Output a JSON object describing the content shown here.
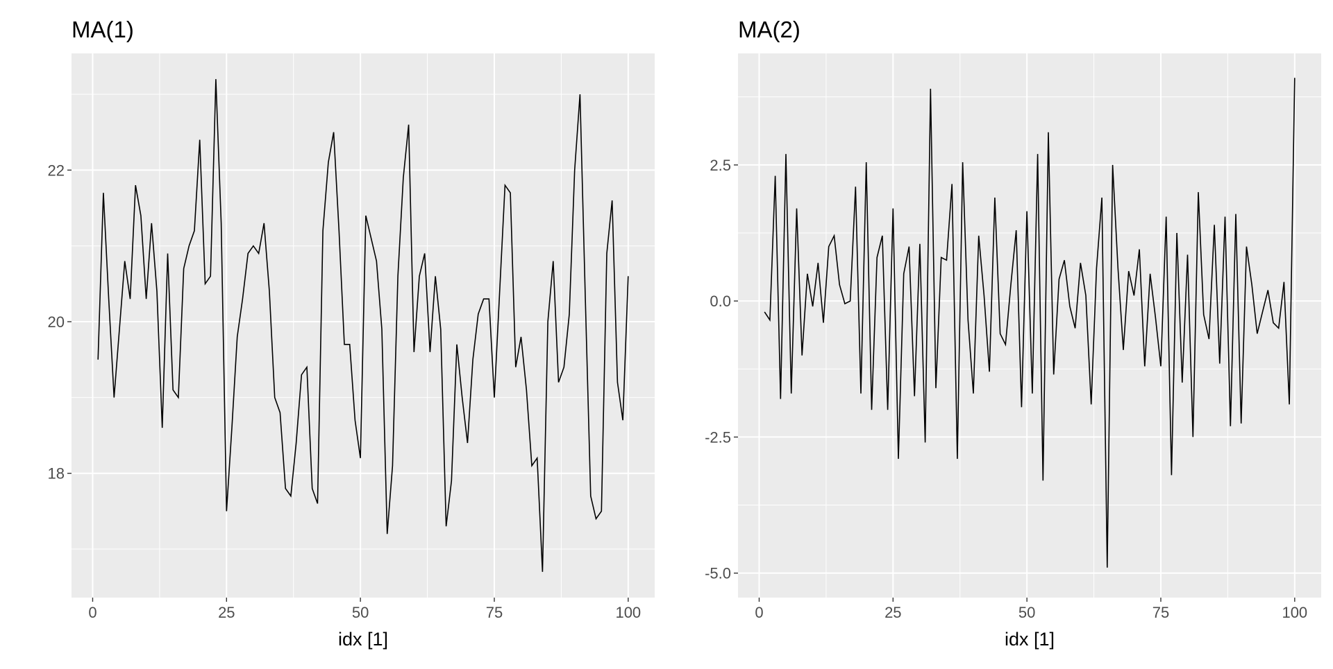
{
  "chart_data": [
    {
      "type": "line",
      "title": "MA(1)",
      "xlabel": "idx [1]",
      "ylabel": "",
      "xlim": [
        -3.95,
        104.95
      ],
      "ylim": [
        16.36,
        23.54
      ],
      "x_ticks": [
        0,
        25,
        50,
        75,
        100
      ],
      "y_ticks": [
        18,
        20,
        22
      ],
      "grid": true,
      "colors": {
        "panel": "#ebebeb",
        "grid": "#ffffff",
        "line": "#000000"
      },
      "x": [
        1,
        2,
        3,
        4,
        5,
        6,
        7,
        8,
        9,
        10,
        11,
        12,
        13,
        14,
        15,
        16,
        17,
        18,
        19,
        20,
        21,
        22,
        23,
        24,
        25,
        26,
        27,
        28,
        29,
        30,
        31,
        32,
        33,
        34,
        35,
        36,
        37,
        38,
        39,
        40,
        41,
        42,
        43,
        44,
        45,
        46,
        47,
        48,
        49,
        50,
        51,
        52,
        53,
        54,
        55,
        56,
        57,
        58,
        59,
        60,
        61,
        62,
        63,
        64,
        65,
        66,
        67,
        68,
        69,
        70,
        71,
        72,
        73,
        74,
        75,
        76,
        77,
        78,
        79,
        80,
        81,
        82,
        83,
        84,
        85,
        86,
        87,
        88,
        89,
        90,
        91,
        92,
        93,
        94,
        95,
        96,
        97,
        98,
        99,
        100
      ],
      "values": [
        19.5,
        21.7,
        20.3,
        19.0,
        19.9,
        20.8,
        20.3,
        21.8,
        21.4,
        20.3,
        21.3,
        20.4,
        18.6,
        20.9,
        19.1,
        19.0,
        20.7,
        21.0,
        21.2,
        22.4,
        20.5,
        20.6,
        23.2,
        21.3,
        17.5,
        18.6,
        19.8,
        20.3,
        20.9,
        21.0,
        20.9,
        21.3,
        20.4,
        19.0,
        18.8,
        17.8,
        17.7,
        18.4,
        19.3,
        19.4,
        17.8,
        17.6,
        21.2,
        22.1,
        22.5,
        21.2,
        19.7,
        19.7,
        18.7,
        18.2,
        21.4,
        21.1,
        20.8,
        19.9,
        17.2,
        18.1,
        20.6,
        21.9,
        22.6,
        19.6,
        20.6,
        20.9,
        19.6,
        20.6,
        19.9,
        17.3,
        17.9,
        19.7,
        19.0,
        18.4,
        19.5,
        20.1,
        20.3,
        20.3,
        19.0,
        20.4,
        21.8,
        21.7,
        19.4,
        19.8,
        19.1,
        18.1,
        18.2,
        16.7,
        20.0,
        20.8,
        19.2,
        19.4,
        20.1,
        22.0,
        23.0,
        20.3,
        17.7,
        17.4,
        17.5,
        20.9,
        21.6,
        19.2,
        18.7,
        20.6
      ]
    },
    {
      "type": "line",
      "title": "MA(2)",
      "xlabel": "idx [1]",
      "ylabel": "",
      "xlim": [
        -3.95,
        104.95
      ],
      "ylim": [
        -5.45,
        4.55
      ],
      "x_ticks": [
        0,
        25,
        50,
        75,
        100
      ],
      "y_ticks": [
        -5.0,
        -2.5,
        0.0,
        2.5
      ],
      "grid": true,
      "colors": {
        "panel": "#ebebeb",
        "grid": "#ffffff",
        "line": "#000000"
      },
      "x": [
        1,
        2,
        3,
        4,
        5,
        6,
        7,
        8,
        9,
        10,
        11,
        12,
        13,
        14,
        15,
        16,
        17,
        18,
        19,
        20,
        21,
        22,
        23,
        24,
        25,
        26,
        27,
        28,
        29,
        30,
        31,
        32,
        33,
        34,
        35,
        36,
        37,
        38,
        39,
        40,
        41,
        42,
        43,
        44,
        45,
        46,
        47,
        48,
        49,
        50,
        51,
        52,
        53,
        54,
        55,
        56,
        57,
        58,
        59,
        60,
        61,
        62,
        63,
        64,
        65,
        66,
        67,
        68,
        69,
        70,
        71,
        72,
        73,
        74,
        75,
        76,
        77,
        78,
        79,
        80,
        81,
        82,
        83,
        84,
        85,
        86,
        87,
        88,
        89,
        90,
        91,
        92,
        93,
        94,
        95,
        96,
        97,
        98,
        99,
        100
      ],
      "values": [
        -0.2,
        -0.35,
        2.3,
        -1.8,
        2.7,
        -1.7,
        1.7,
        -1.0,
        0.5,
        -0.1,
        0.7,
        -0.4,
        1.0,
        1.2,
        0.3,
        -0.05,
        0.0,
        2.1,
        -1.7,
        2.55,
        -2.0,
        0.8,
        1.2,
        -2.0,
        1.7,
        -2.9,
        0.5,
        1.0,
        -1.75,
        1.05,
        -2.6,
        3.9,
        -1.6,
        0.8,
        0.75,
        2.15,
        -2.9,
        2.55,
        -0.35,
        -1.7,
        1.2,
        0.1,
        -1.3,
        1.9,
        -0.6,
        -0.8,
        0.3,
        1.3,
        -1.95,
        1.65,
        -1.7,
        2.7,
        -3.3,
        3.1,
        -1.35,
        0.4,
        0.75,
        -0.1,
        -0.5,
        0.7,
        0.1,
        -1.9,
        0.6,
        1.9,
        -4.9,
        2.5,
        0.6,
        -0.9,
        0.55,
        0.1,
        0.95,
        -1.2,
        0.5,
        -0.3,
        -1.2,
        1.55,
        -3.2,
        1.25,
        -1.5,
        0.85,
        -2.5,
        2.0,
        -0.25,
        -0.7,
        1.4,
        -1.15,
        1.55,
        -2.3,
        1.6,
        -2.25,
        1.0,
        0.3,
        -0.6,
        -0.2,
        0.2,
        -0.4,
        -0.5,
        0.35,
        -1.9,
        4.1
      ]
    }
  ]
}
